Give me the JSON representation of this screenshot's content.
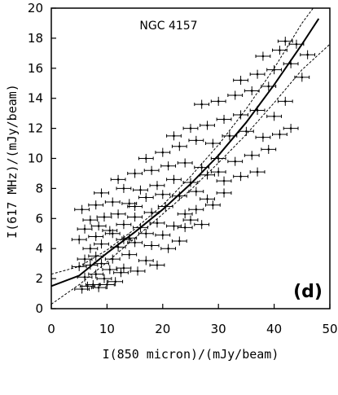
{
  "chart_data": {
    "type": "scatter",
    "title": "NGC 4157",
    "panel_label": "(d)",
    "xlabel": "I(850 micron)/(mJy/beam)",
    "ylabel": "I(617 MHz)/(mJy/beam)",
    "xlim": [
      0,
      50
    ],
    "ylim": [
      0,
      20
    ],
    "xticks": [
      0,
      10,
      20,
      30,
      40,
      50
    ],
    "yticks": [
      0,
      2,
      4,
      6,
      8,
      10,
      12,
      14,
      16,
      18,
      20
    ],
    "grid": false,
    "error_bars": {
      "x_halfwidth": 1.3,
      "y_halfwidth": 0.3
    },
    "series": [
      {
        "style": "points with error bars",
        "points": [
          [
            5.5,
            1.3
          ],
          [
            6.5,
            1.5
          ],
          [
            7.5,
            1.6
          ],
          [
            8.5,
            1.4
          ],
          [
            10,
            1.6
          ],
          [
            11.5,
            1.8
          ],
          [
            6,
            2.1
          ],
          [
            8,
            2.3
          ],
          [
            9.5,
            2.0
          ],
          [
            12.5,
            2.4
          ],
          [
            5,
            2.8
          ],
          [
            7,
            2.9
          ],
          [
            9,
            3.0
          ],
          [
            10.5,
            2.6
          ],
          [
            13,
            2.7
          ],
          [
            15.5,
            2.5
          ],
          [
            6,
            3.3
          ],
          [
            8,
            3.5
          ],
          [
            11,
            3.3
          ],
          [
            14,
            3.6
          ],
          [
            17,
            3.2
          ],
          [
            19,
            2.9
          ],
          [
            7,
            4.0
          ],
          [
            9,
            4.3
          ],
          [
            12,
            4.1
          ],
          [
            15,
            4.4
          ],
          [
            18,
            4.2
          ],
          [
            21,
            4.0
          ],
          [
            5,
            4.6
          ],
          [
            8,
            4.8
          ],
          [
            11,
            5.0
          ],
          [
            14,
            4.7
          ],
          [
            17,
            5.0
          ],
          [
            20,
            4.9
          ],
          [
            23,
            4.5
          ],
          [
            6,
            5.3
          ],
          [
            8.5,
            5.5
          ],
          [
            10.5,
            5.2
          ],
          [
            13,
            5.6
          ],
          [
            16,
            5.4
          ],
          [
            19,
            5.7
          ],
          [
            22,
            5.5
          ],
          [
            25,
            5.9
          ],
          [
            27,
            5.6
          ],
          [
            7,
            5.9
          ],
          [
            9.5,
            6.1
          ],
          [
            12,
            6.3
          ],
          [
            15,
            6.1
          ],
          [
            18,
            6.4
          ],
          [
            20.5,
            6.8
          ],
          [
            24,
            6.3
          ],
          [
            26,
            6.6
          ],
          [
            29,
            6.9
          ],
          [
            5.5,
            6.6
          ],
          [
            8,
            6.9
          ],
          [
            11,
            7.1
          ],
          [
            14,
            7.0
          ],
          [
            17,
            7.4
          ],
          [
            20,
            7.6
          ],
          [
            23,
            7.5
          ],
          [
            26,
            7.8
          ],
          [
            28,
            7.3
          ],
          [
            31,
            7.7
          ],
          [
            9,
            7.7
          ],
          [
            13,
            8.0
          ],
          [
            16,
            7.9
          ],
          [
            19,
            8.2
          ],
          [
            22,
            8.6
          ],
          [
            25,
            8.4
          ],
          [
            28,
            8.9
          ],
          [
            31,
            8.5
          ],
          [
            34,
            8.8
          ],
          [
            37,
            9.1
          ],
          [
            12,
            8.6
          ],
          [
            15,
            9.0
          ],
          [
            18,
            9.2
          ],
          [
            21,
            9.5
          ],
          [
            24,
            9.7
          ],
          [
            27,
            9.4
          ],
          [
            30,
            10.0
          ],
          [
            33,
            9.8
          ],
          [
            36,
            10.2
          ],
          [
            39,
            10.6
          ],
          [
            17,
            10.0
          ],
          [
            20,
            10.4
          ],
          [
            23,
            10.8
          ],
          [
            26,
            11.2
          ],
          [
            29,
            11.0
          ],
          [
            32,
            11.5
          ],
          [
            35,
            11.8
          ],
          [
            38,
            11.4
          ],
          [
            41,
            11.6
          ],
          [
            43,
            12.0
          ],
          [
            22,
            11.5
          ],
          [
            25,
            12.0
          ],
          [
            28,
            12.2
          ],
          [
            31,
            12.6
          ],
          [
            34,
            12.9
          ],
          [
            37,
            13.2
          ],
          [
            40,
            12.8
          ],
          [
            27,
            13.6
          ],
          [
            30,
            13.8
          ],
          [
            33,
            14.2
          ],
          [
            36,
            14.5
          ],
          [
            39,
            14.8
          ],
          [
            42,
            13.8
          ],
          [
            34,
            15.2
          ],
          [
            37,
            15.6
          ],
          [
            40,
            15.9
          ],
          [
            43,
            16.3
          ],
          [
            45,
            15.4
          ],
          [
            38,
            16.8
          ],
          [
            41,
            17.2
          ],
          [
            44,
            17.6
          ],
          [
            42,
            17.8
          ],
          [
            46,
            16.9
          ],
          [
            15,
            6.8
          ],
          [
            13,
            4.6
          ],
          [
            24,
            5.4
          ],
          [
            30,
            9.1
          ]
        ]
      },
      {
        "style": "solid curve",
        "x": [
          0,
          5,
          10,
          15,
          20,
          25,
          30,
          35,
          40,
          45,
          48
        ],
        "y": [
          1.5,
          2.2,
          3.7,
          5.1,
          6.6,
          8.3,
          10.2,
          12.4,
          14.9,
          17.6,
          19.3
        ]
      },
      {
        "style": "dashed curve",
        "x": [
          0,
          5,
          10,
          15,
          20,
          25,
          30,
          35,
          40,
          45,
          47
        ],
        "y": [
          2.3,
          2.8,
          3.9,
          5.3,
          6.9,
          8.8,
          10.9,
          13.3,
          16.0,
          19.0,
          20.0
        ]
      },
      {
        "style": "dashed curve",
        "x": [
          0,
          5,
          10,
          15,
          20,
          25,
          30,
          35,
          40,
          45,
          50
        ],
        "y": [
          0.3,
          1.6,
          3.1,
          4.7,
          6.3,
          7.9,
          9.7,
          11.6,
          13.7,
          15.9,
          17.6
        ]
      }
    ]
  }
}
